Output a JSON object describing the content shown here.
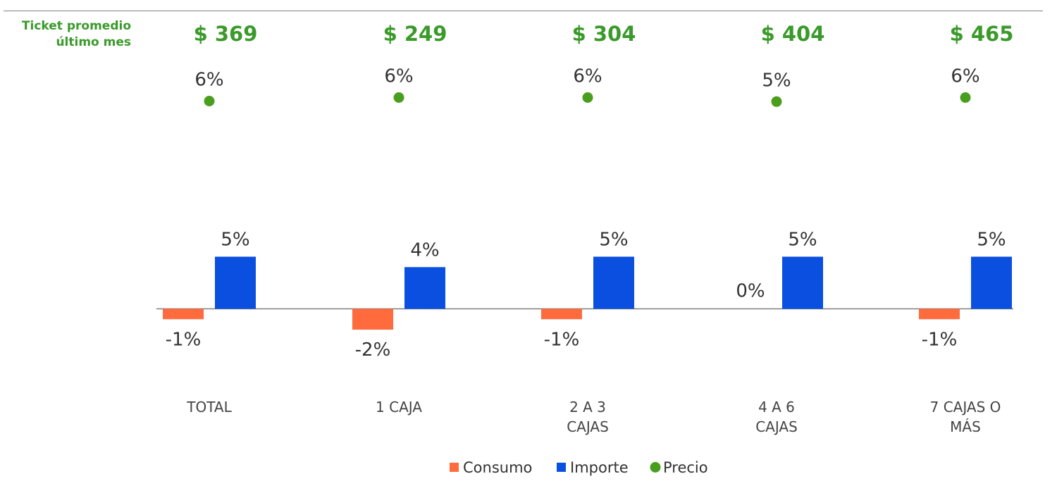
{
  "ticket_header": {
    "line1": "Ticket promedio",
    "line2": "último mes",
    "values": [
      "$ 369",
      "$ 249",
      "$ 304",
      "$ 404",
      "$ 465"
    ]
  },
  "colors": {
    "consumo": "#ff6b3d",
    "importe": "#0a4fe0",
    "precio": "#4a9e1e",
    "ticket": "#3a9a2a",
    "axis": "#7f7f7f",
    "label": "#333333"
  },
  "chart_data": {
    "type": "bar",
    "categories": [
      [
        "TOTAL"
      ],
      [
        "1 CAJA"
      ],
      [
        "2 A 3",
        "CAJAS"
      ],
      [
        "4 A 6",
        "CAJAS"
      ],
      [
        "7 CAJAS O",
        "MÁS"
      ]
    ],
    "series": [
      {
        "name": "Consumo",
        "kind": "bar",
        "values": [
          -1,
          -2,
          -1,
          0,
          -1
        ],
        "labels": [
          "-1%",
          "-2%",
          "-1%",
          "0%",
          "-1%"
        ]
      },
      {
        "name": "Importe",
        "kind": "bar",
        "values": [
          5,
          4,
          5,
          5,
          5
        ],
        "labels": [
          "5%",
          "4%",
          "5%",
          "5%",
          "5%"
        ]
      },
      {
        "name": "Precio",
        "kind": "marker",
        "values": [
          6,
          6,
          6,
          5,
          6
        ],
        "labels": [
          "6%",
          "6%",
          "6%",
          "5%",
          "6%"
        ]
      }
    ],
    "legend_position": "bottom-center",
    "grid": false
  }
}
